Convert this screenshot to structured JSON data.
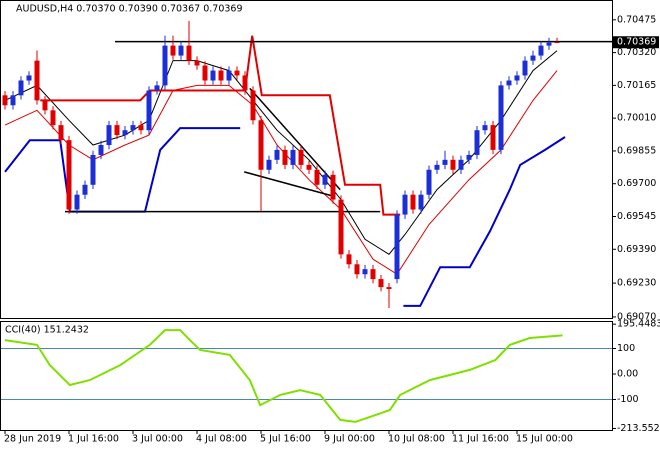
{
  "chart_data": [
    {
      "type": "candlestick",
      "title": "AUDUSD,H4  0.70370 0.70390 0.70367 0.70369",
      "up_color": "#1c2fd6",
      "down_color": "#e00000",
      "xlim": [
        -0.625,
        75.875
      ],
      "ylim": [
        0.69065,
        0.70564
      ],
      "yticks": [
        0.70475,
        {
          "value": 0.7032,
          "label": "0.70320"
        },
        0.70165,
        {
          "value": 0.7001,
          "label": "0.70010"
        },
        0.69855,
        {
          "value": 0.697,
          "label": "0.69700"
        },
        0.69545,
        {
          "value": 0.6939,
          "label": "0.69390"
        },
        {
          "value": 0.6923,
          "label": "0.69230"
        },
        {
          "value": 0.6907,
          "label": "0.69070"
        }
      ],
      "current_price": 0.70369,
      "ohlc": [
        [
          0.70118,
          0.70138,
          0.70051,
          0.70071
        ],
        [
          0.70071,
          0.70138,
          0.70051,
          0.70118
        ],
        [
          0.70118,
          0.70208,
          0.70098,
          0.70188
        ],
        [
          0.70188,
          0.70232,
          0.70168,
          0.70212
        ],
        [
          0.70282,
          0.7033,
          0.70074,
          0.70094
        ],
        [
          0.70094,
          0.70114,
          0.70027,
          0.70047
        ],
        [
          0.70047,
          0.70067,
          0.69957,
          0.69977
        ],
        [
          0.69977,
          0.69997,
          0.69886,
          0.69906
        ],
        [
          0.69906,
          0.69926,
          0.69558,
          0.69578
        ],
        [
          0.69578,
          0.69668,
          0.69558,
          0.69648
        ],
        [
          0.69648,
          0.69715,
          0.69628,
          0.69695
        ],
        [
          0.69695,
          0.69856,
          0.69675,
          0.69836
        ],
        [
          0.69836,
          0.69903,
          0.69816,
          0.69883
        ],
        [
          0.69883,
          0.69997,
          0.69863,
          0.69977
        ],
        [
          0.69977,
          0.69997,
          0.6991,
          0.6993
        ],
        [
          0.6993,
          0.69973,
          0.6991,
          0.69953
        ],
        [
          0.69953,
          0.69997,
          0.69933,
          0.69977
        ],
        [
          0.69977,
          0.69997,
          0.69933,
          0.69953
        ],
        [
          0.69953,
          0.70161,
          0.69933,
          0.70141
        ],
        [
          0.70141,
          0.70185,
          0.70121,
          0.70165
        ],
        [
          0.70165,
          0.704,
          0.70145,
          0.70353
        ],
        [
          0.70353,
          0.704,
          0.70286,
          0.70306
        ],
        [
          0.70306,
          0.70373,
          0.70286,
          0.70353
        ],
        [
          0.70353,
          0.7047,
          0.70262,
          0.70282
        ],
        [
          0.70282,
          0.70302,
          0.70239,
          0.70259
        ],
        [
          0.70259,
          0.70279,
          0.70168,
          0.70188
        ],
        [
          0.70188,
          0.70255,
          0.70168,
          0.70235
        ],
        [
          0.70235,
          0.70255,
          0.70168,
          0.70188
        ],
        [
          0.70188,
          0.70255,
          0.70168,
          0.70235
        ],
        [
          0.70235,
          0.70255,
          0.70192,
          0.70212
        ],
        [
          0.70212,
          0.70232,
          0.70121,
          0.70141
        ],
        [
          0.70141,
          0.70161,
          0.6998,
          0.7
        ],
        [
          0.7,
          0.7002,
          0.6957,
          0.69766
        ],
        [
          0.69766,
          0.69833,
          0.69746,
          0.69813
        ],
        [
          0.69813,
          0.6988,
          0.69793,
          0.6986
        ],
        [
          0.6986,
          0.6988,
          0.69769,
          0.69789
        ],
        [
          0.69789,
          0.6988,
          0.69769,
          0.6986
        ],
        [
          0.6986,
          0.6988,
          0.69769,
          0.69789
        ],
        [
          0.69789,
          0.69809,
          0.69746,
          0.69766
        ],
        [
          0.69766,
          0.69786,
          0.69675,
          0.69695
        ],
        [
          0.69695,
          0.69762,
          0.69675,
          0.69742
        ],
        [
          0.69742,
          0.69762,
          0.69605,
          0.69625
        ],
        [
          0.69625,
          0.69645,
          0.69346,
          0.69366
        ],
        [
          0.69366,
          0.69386,
          0.69299,
          0.69319
        ],
        [
          0.69319,
          0.69339,
          0.69252,
          0.69272
        ],
        [
          0.69272,
          0.69316,
          0.69252,
          0.69296
        ],
        [
          0.69296,
          0.69316,
          0.69229,
          0.69249
        ],
        [
          0.69249,
          0.69269,
          0.69191,
          0.69211
        ],
        [
          0.69211,
          0.69231,
          0.69112,
          0.69202
        ],
        [
          0.69249,
          0.69574,
          0.69229,
          0.69554
        ],
        [
          0.69554,
          0.69668,
          0.69534,
          0.69648
        ],
        [
          0.69648,
          0.69668,
          0.69558,
          0.69578
        ],
        [
          0.69578,
          0.69668,
          0.69558,
          0.69648
        ],
        [
          0.69648,
          0.69786,
          0.69628,
          0.69766
        ],
        [
          0.69766,
          0.69809,
          0.69746,
          0.69789
        ],
        [
          0.69789,
          0.69856,
          0.69769,
          0.69813
        ],
        [
          0.69813,
          0.69833,
          0.69746,
          0.69766
        ],
        [
          0.69766,
          0.69833,
          0.69746,
          0.69813
        ],
        [
          0.69813,
          0.69856,
          0.69793,
          0.69836
        ],
        [
          0.69836,
          0.69973,
          0.69816,
          0.69953
        ],
        [
          0.69953,
          0.69997,
          0.69933,
          0.69977
        ],
        [
          0.69977,
          0.69997,
          0.6984,
          0.6986
        ],
        [
          0.6986,
          0.70185,
          0.6984,
          0.70165
        ],
        [
          0.70165,
          0.70208,
          0.70145,
          0.70188
        ],
        [
          0.70188,
          0.70232,
          0.70168,
          0.70212
        ],
        [
          0.70212,
          0.70302,
          0.70192,
          0.70282
        ],
        [
          0.70282,
          0.70329,
          0.70262,
          0.70306
        ],
        [
          0.70306,
          0.70373,
          0.70286,
          0.70353
        ],
        [
          0.70353,
          0.7039,
          0.70333,
          0.70367
        ],
        [
          0.7037,
          0.7039,
          0.70367,
          0.70369
        ]
      ],
      "series": [
        {
          "color": "#000000",
          "width": 1,
          "x": [
            0,
            4,
            8,
            11,
            15,
            18,
            21,
            24,
            28,
            31,
            34,
            38,
            42,
            45,
            48,
            50,
            54,
            58,
            62,
            66,
            69
          ],
          "values": [
            0.70094,
            0.70165,
            0.7,
            0.69883,
            0.6993,
            0.7,
            0.70282,
            0.70282,
            0.70235,
            0.70094,
            0.69953,
            0.69813,
            0.69625,
            0.69437,
            0.69366,
            0.6946,
            0.69672,
            0.69813,
            0.7,
            0.70235,
            0.70329
          ]
        },
        {
          "color": "#e00000",
          "width": 1,
          "x": [
            0,
            4,
            8,
            11,
            15,
            18,
            21,
            24,
            28,
            31,
            34,
            38,
            42,
            46,
            49,
            53,
            58,
            62,
            66,
            69
          ],
          "values": [
            0.69977,
            0.70047,
            0.69883,
            0.69813,
            0.69883,
            0.6993,
            0.70141,
            0.70165,
            0.70165,
            0.70071,
            0.69883,
            0.69719,
            0.69578,
            0.69343,
            0.69272,
            0.69507,
            0.69719,
            0.6986,
            0.70094,
            0.70235
          ]
        },
        {
          "color": "#e00000",
          "width": 2,
          "x": [
            4.4,
            16.9,
            18.1,
            30,
            30.9,
            32.1,
            40.6,
            42.5,
            46.9,
            47.3,
            49.4
          ],
          "values": [
            0.70094,
            0.70094,
            0.70141,
            0.70141,
            0.704,
            0.70118,
            0.70118,
            0.69695,
            0.69695,
            0.69554,
            0.69554
          ]
        },
        {
          "color": "#0000cc",
          "width": 2,
          "x": [
            0,
            3.1,
            6.9,
            8.1,
            17.5,
            19.4,
            21.9,
            29.4,
            40,
            49.8,
            51.9,
            54.4,
            58.1,
            60.6,
            63.1,
            64.4,
            67.5,
            70
          ],
          "values": [
            0.69756,
            0.69906,
            0.69906,
            0.69568,
            0.69568,
            0.6986,
            0.69963,
            0.69963,
            null,
            0.69122,
            0.69122,
            0.69305,
            0.69305,
            0.69474,
            0.69672,
            0.69789,
            0.6986,
            0.69921
          ]
        }
      ],
      "lines": [
        {
          "x": [
            13.75,
            75.875
          ],
          "y": [
            0.70372,
            0.70372
          ]
        },
        {
          "x": [
            7.5,
            46.9
          ],
          "y": [
            0.69568,
            0.69568
          ]
        },
        {
          "x": [
            30.6,
            41.9
          ],
          "y": [
            0.70151,
            0.69672
          ]
        },
        {
          "x": [
            29.9,
            41.25
          ],
          "y": [
            0.69756,
            0.69639
          ]
        }
      ]
    },
    {
      "type": "line",
      "title": "CCI(40) 151.2432",
      "color": "#7fe000",
      "xlim": [
        -0.625,
        75.875
      ],
      "ylim": [
        -219.6,
        203.9
      ],
      "yticks": [
        195.4483,
        100,
        {
          "value": 0,
          "label": "0.00"
        },
        -100,
        -213.5528
      ],
      "levels": [
        100,
        -100
      ],
      "x": [
        0,
        4,
        5.6,
        8.1,
        10.6,
        14.4,
        18.1,
        20,
        21.9,
        23.1,
        24.4,
        28.1,
        30.6,
        31.9,
        34.4,
        36.9,
        39.4,
        41.9,
        43.8,
        46.3,
        48.1,
        49.4,
        53.1,
        58.1,
        61.3,
        63.1,
        65.6,
        69.7
      ],
      "values": [
        133,
        114,
        35,
        -43,
        -24,
        35,
        114,
        172,
        172,
        133,
        94,
        75,
        -24,
        -122,
        -82,
        -63,
        -82,
        -180,
        -188,
        -161,
        -141,
        -82,
        -24,
        16,
        55,
        114,
        141,
        151.2432
      ],
      "xticks": [
        {
          "value": 0,
          "label": "28 Jun 2019"
        },
        {
          "value": 8,
          "label": "1 Jul 16:00"
        },
        {
          "value": 16,
          "label": "3 Jul 00:00"
        },
        {
          "value": 24,
          "label": "4 Jul 08:00"
        },
        {
          "value": 32,
          "label": "5 Jul 16:00"
        },
        {
          "value": 40,
          "label": "9 Jul 00:00"
        },
        {
          "value": 48,
          "label": "10 Jul 08:00"
        },
        {
          "value": 56,
          "label": "11 Jul 16:00"
        },
        {
          "value": 64,
          "label": "15 Jul 00:00"
        }
      ]
    }
  ]
}
